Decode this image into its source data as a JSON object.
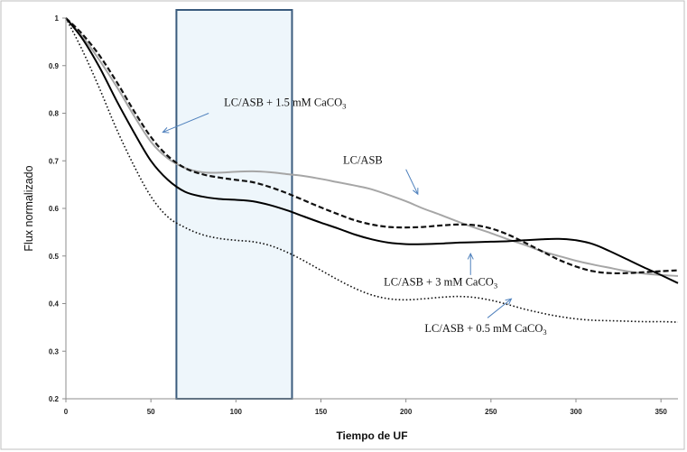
{
  "chart_data": {
    "type": "line",
    "xlabel": "Tiempo de UF",
    "ylabel": "Flux normalizado",
    "xlim": [
      0,
      360
    ],
    "ylim": [
      0.2,
      1
    ],
    "xticks": [
      0,
      50,
      100,
      150,
      200,
      250,
      300,
      350
    ],
    "yticks": [
      0.2,
      0.3,
      0.4,
      0.5,
      0.6,
      0.7,
      0.8,
      0.9,
      1
    ],
    "ytick_labels": [
      "0.2",
      "0.3",
      "0.4",
      "0.5",
      "0.6",
      "0.7",
      "0.8",
      "0.9",
      "1"
    ],
    "grid": false,
    "highlight_region": {
      "x_start": 65,
      "x_end": 133,
      "fill": "#eef6fb",
      "stroke": "#3a5b7d"
    },
    "series": [
      {
        "name": "LC/ASB",
        "style": "solid",
        "color": "#a6a6a6",
        "x": [
          0,
          10,
          20,
          30,
          40,
          50,
          60,
          70,
          80,
          90,
          100,
          110,
          120,
          130,
          140,
          150,
          160,
          170,
          180,
          190,
          200,
          210,
          220,
          230,
          240,
          250,
          260,
          270,
          280,
          290,
          300,
          310,
          320,
          330,
          340,
          350,
          360
        ],
        "y": [
          1.0,
          0.96,
          0.91,
          0.855,
          0.795,
          0.74,
          0.705,
          0.685,
          0.676,
          0.675,
          0.677,
          0.678,
          0.676,
          0.672,
          0.668,
          0.662,
          0.655,
          0.648,
          0.64,
          0.628,
          0.615,
          0.6,
          0.587,
          0.573,
          0.56,
          0.548,
          0.535,
          0.523,
          0.51,
          0.5,
          0.49,
          0.482,
          0.475,
          0.468,
          0.463,
          0.46,
          0.458
        ]
      },
      {
        "name": "LC/ASB + 1.5 mM CaCO3",
        "style": "dashed",
        "color": "#111111",
        "x": [
          0,
          10,
          20,
          30,
          40,
          50,
          60,
          70,
          80,
          90,
          100,
          110,
          120,
          130,
          140,
          150,
          160,
          170,
          180,
          190,
          200,
          210,
          220,
          230,
          240,
          250,
          260,
          270,
          280,
          290,
          300,
          310,
          320,
          330,
          340,
          350,
          360
        ],
        "y": [
          1.0,
          0.965,
          0.92,
          0.865,
          0.805,
          0.75,
          0.71,
          0.685,
          0.672,
          0.665,
          0.66,
          0.655,
          0.645,
          0.632,
          0.617,
          0.602,
          0.588,
          0.575,
          0.566,
          0.561,
          0.56,
          0.561,
          0.564,
          0.566,
          0.565,
          0.558,
          0.545,
          0.528,
          0.51,
          0.492,
          0.478,
          0.468,
          0.464,
          0.464,
          0.466,
          0.468,
          0.47
        ]
      },
      {
        "name": "LC/ASB + 3 mM CaCO3",
        "style": "solid",
        "color": "#000000",
        "x": [
          0,
          10,
          20,
          30,
          40,
          50,
          60,
          70,
          80,
          90,
          100,
          110,
          120,
          130,
          140,
          150,
          160,
          170,
          180,
          190,
          200,
          210,
          220,
          230,
          240,
          250,
          260,
          270,
          280,
          290,
          300,
          310,
          320,
          330,
          340,
          350,
          360
        ],
        "y": [
          1.0,
          0.955,
          0.895,
          0.825,
          0.76,
          0.7,
          0.66,
          0.635,
          0.625,
          0.62,
          0.618,
          0.615,
          0.607,
          0.596,
          0.583,
          0.57,
          0.558,
          0.545,
          0.535,
          0.528,
          0.525,
          0.525,
          0.526,
          0.528,
          0.529,
          0.53,
          0.531,
          0.533,
          0.535,
          0.536,
          0.533,
          0.525,
          0.51,
          0.493,
          0.476,
          0.46,
          0.443
        ]
      },
      {
        "name": "LC/ASB + 0.5 mM CaCO3",
        "style": "dotted",
        "color": "#111111",
        "x": [
          0,
          10,
          20,
          30,
          40,
          50,
          60,
          70,
          80,
          90,
          100,
          110,
          120,
          130,
          140,
          150,
          160,
          170,
          180,
          190,
          200,
          210,
          220,
          230,
          240,
          250,
          260,
          270,
          280,
          290,
          300,
          310,
          320,
          330,
          340,
          350,
          360
        ],
        "y": [
          1.0,
          0.93,
          0.85,
          0.765,
          0.69,
          0.625,
          0.582,
          0.56,
          0.545,
          0.537,
          0.533,
          0.53,
          0.522,
          0.508,
          0.49,
          0.47,
          0.45,
          0.432,
          0.418,
          0.41,
          0.408,
          0.41,
          0.413,
          0.415,
          0.413,
          0.407,
          0.398,
          0.388,
          0.38,
          0.373,
          0.368,
          0.365,
          0.364,
          0.363,
          0.362,
          0.362,
          0.361
        ]
      }
    ],
    "annotations": [
      {
        "id": "ann15",
        "base": "LC/ASB + 1.5 mM CaCO",
        "sub": "3",
        "tx": 93,
        "ty": 0.815,
        "arrow": [
          [
            84,
            0.8
          ],
          [
            57,
            0.76
          ]
        ]
      },
      {
        "id": "annlc",
        "base": "LC/ASB",
        "sub": "",
        "tx": 163,
        "ty": 0.694,
        "arrow": [
          [
            200,
            0.682
          ],
          [
            207,
            0.63
          ]
        ]
      },
      {
        "id": "ann3",
        "base": "LC/ASB + 3 mM CaCO",
        "sub": "3",
        "tx": 187,
        "ty": 0.438,
        "arrow": [
          [
            238,
            0.46
          ],
          [
            238,
            0.505
          ]
        ]
      },
      {
        "id": "ann05",
        "base": "LC/ASB + 0.5 mM CaCO",
        "sub": "3",
        "tx": 211,
        "ty": 0.34,
        "arrow": [
          [
            248,
            0.37
          ],
          [
            262,
            0.41
          ]
        ]
      }
    ]
  }
}
